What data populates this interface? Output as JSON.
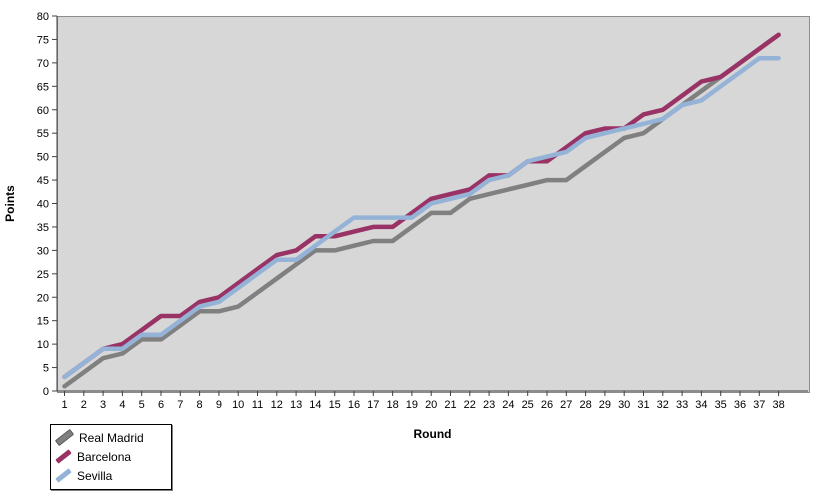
{
  "chart_data": {
    "type": "line",
    "title": "",
    "xlabel": "Round",
    "ylabel": "Points",
    "ylim": [
      0,
      80
    ],
    "y_ticks": [
      0,
      5,
      10,
      15,
      20,
      25,
      30,
      35,
      40,
      45,
      50,
      55,
      60,
      65,
      70,
      75,
      80
    ],
    "x": [
      1,
      2,
      3,
      4,
      5,
      6,
      7,
      8,
      9,
      10,
      11,
      12,
      13,
      14,
      15,
      16,
      17,
      18,
      19,
      20,
      21,
      22,
      23,
      24,
      25,
      26,
      27,
      28,
      29,
      30,
      31,
      32,
      33,
      34,
      35,
      36,
      37,
      38
    ],
    "grid": "off",
    "plot_background": "#d7d7d7",
    "legend_position": "bottom-left",
    "series": [
      {
        "name": "Real Madrid",
        "color": "#808080",
        "values": [
          1,
          4,
          7,
          8,
          11,
          11,
          14,
          17,
          17,
          18,
          21,
          24,
          27,
          30,
          30,
          31,
          32,
          32,
          35,
          38,
          38,
          41,
          42,
          43,
          44,
          45,
          45,
          48,
          51,
          54,
          55,
          58,
          61,
          64,
          67,
          70,
          73,
          76
        ]
      },
      {
        "name": "Barcelona",
        "color": "#993366",
        "values": [
          3,
          6,
          9,
          10,
          13,
          16,
          16,
          19,
          20,
          23,
          26,
          29,
          30,
          33,
          33,
          34,
          35,
          35,
          38,
          41,
          42,
          43,
          46,
          46,
          49,
          49,
          52,
          55,
          56,
          56,
          59,
          60,
          63,
          66,
          67,
          70,
          73,
          76
        ]
      },
      {
        "name": "Sevilla",
        "color": "#95b3d7",
        "values": [
          3,
          6,
          9,
          9,
          12,
          12,
          15,
          18,
          19,
          22,
          25,
          28,
          28,
          31,
          34,
          37,
          37,
          37,
          37,
          40,
          41,
          42,
          45,
          46,
          49,
          50,
          51,
          54,
          55,
          56,
          57,
          58,
          61,
          62,
          65,
          68,
          71,
          71
        ]
      }
    ]
  },
  "legend": {
    "items": [
      {
        "label": "Real Madrid"
      },
      {
        "label": "Barcelona"
      },
      {
        "label": "Sevilla"
      }
    ]
  },
  "axes": {
    "y_title": "Points",
    "x_title": "Round"
  }
}
